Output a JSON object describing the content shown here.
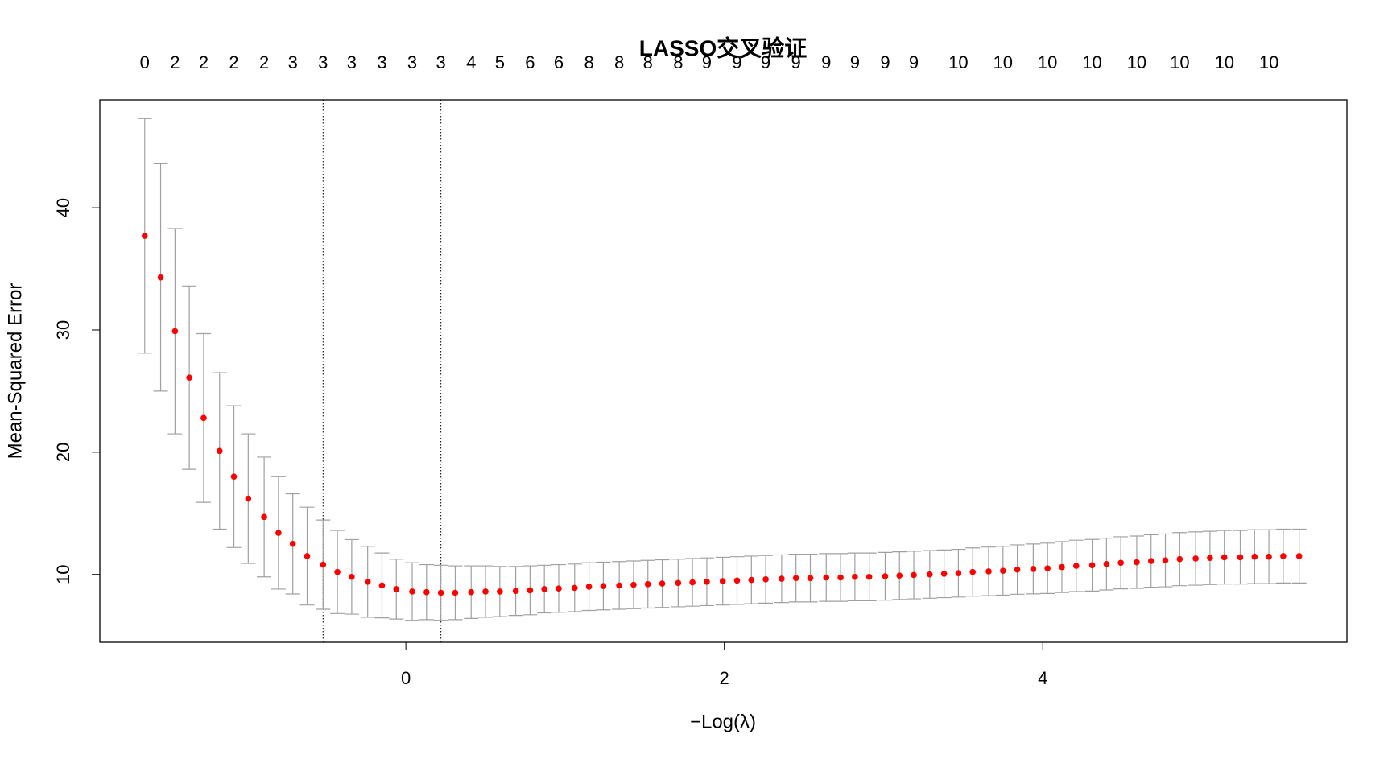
{
  "chart_data": {
    "type": "errorbar",
    "title": "LASSO交叉验证",
    "x_label": "−Log(λ)",
    "y_label": "Mean-Squared Error",
    "x": [
      -1.64,
      -1.54,
      -1.45,
      -1.36,
      -1.27,
      -1.17,
      -1.08,
      -0.99,
      -0.89,
      -0.8,
      -0.71,
      -0.62,
      -0.52,
      -0.43,
      -0.34,
      -0.24,
      -0.15,
      -0.06,
      0.04,
      0.13,
      0.22,
      0.31,
      0.41,
      0.5,
      0.59,
      0.69,
      0.78,
      0.87,
      0.96,
      1.06,
      1.15,
      1.24,
      1.34,
      1.43,
      1.52,
      1.61,
      1.71,
      1.8,
      1.89,
      1.99,
      2.08,
      2.17,
      2.26,
      2.36,
      2.45,
      2.54,
      2.64,
      2.73,
      2.82,
      2.91,
      3.01,
      3.1,
      3.19,
      3.29,
      3.38,
      3.47,
      3.56,
      3.66,
      3.75,
      3.84,
      3.94,
      4.03,
      4.12,
      4.21,
      4.31,
      4.4,
      4.49,
      4.59,
      4.68,
      4.77,
      4.86,
      4.96,
      5.05,
      5.14,
      5.24,
      5.33,
      5.42,
      5.51,
      5.61
    ],
    "values": [
      37.7,
      34.3,
      29.9,
      26.1,
      22.8,
      20.1,
      18.0,
      16.2,
      14.7,
      13.4,
      12.5,
      11.5,
      10.8,
      10.2,
      9.8,
      9.4,
      9.1,
      8.8,
      8.6,
      8.55,
      8.5,
      8.5,
      8.55,
      8.6,
      8.6,
      8.65,
      8.7,
      8.8,
      8.85,
      8.9,
      9.0,
      9.05,
      9.1,
      9.15,
      9.2,
      9.25,
      9.3,
      9.35,
      9.4,
      9.45,
      9.5,
      9.55,
      9.6,
      9.65,
      9.7,
      9.7,
      9.75,
      9.75,
      9.8,
      9.8,
      9.85,
      9.9,
      9.95,
      10.0,
      10.05,
      10.1,
      10.2,
      10.25,
      10.3,
      10.4,
      10.45,
      10.5,
      10.6,
      10.7,
      10.75,
      10.85,
      10.95,
      11.0,
      11.1,
      11.15,
      11.25,
      11.3,
      11.35,
      11.4,
      11.4,
      11.45,
      11.45,
      11.5,
      11.5
    ],
    "errors": [
      9.6,
      9.3,
      8.4,
      7.5,
      6.9,
      6.4,
      5.8,
      5.3,
      4.9,
      4.6,
      4.1,
      4.0,
      3.65,
      3.4,
      3.05,
      2.9,
      2.65,
      2.45,
      2.35,
      2.25,
      2.25,
      2.2,
      2.15,
      2.1,
      2.05,
      2.0,
      2.0,
      1.95,
      1.95,
      1.95,
      1.95,
      1.95,
      1.95,
      1.95,
      1.95,
      1.95,
      1.95,
      1.95,
      1.95,
      1.95,
      1.95,
      1.95,
      1.95,
      1.95,
      1.95,
      1.95,
      1.95,
      1.95,
      1.95,
      1.95,
      1.95,
      1.95,
      1.95,
      1.95,
      1.95,
      1.95,
      1.97,
      1.99,
      2.0,
      2.02,
      2.04,
      2.06,
      2.08,
      2.1,
      2.11,
      2.12,
      2.13,
      2.14,
      2.15,
      2.16,
      2.17,
      2.18,
      2.18,
      2.19,
      2.19,
      2.2,
      2.2,
      2.2,
      2.2
    ],
    "color": "#ff0000",
    "error_color": "#a0a0a0",
    "vlines": [
      -0.52,
      0.22
    ],
    "xlim": [
      -1.922,
      5.91
    ],
    "ylim": [
      4.45,
      48.83
    ],
    "xticks": [
      0,
      2,
      4
    ],
    "yticks": [
      10,
      20,
      30,
      40
    ],
    "top_ticks": [
      {
        "value": -1.64,
        "label": "0"
      },
      {
        "value": -1.45,
        "label": "2"
      },
      {
        "value": -1.27,
        "label": "2"
      },
      {
        "value": -1.08,
        "label": "2"
      },
      {
        "value": -0.89,
        "label": "2"
      },
      {
        "value": -0.71,
        "label": "3"
      },
      {
        "value": -0.52,
        "label": "3"
      },
      {
        "value": -0.34,
        "label": "3"
      },
      {
        "value": -0.15,
        "label": "3"
      },
      {
        "value": 0.04,
        "label": "3"
      },
      {
        "value": 0.22,
        "label": "3"
      },
      {
        "value": 0.41,
        "label": "4"
      },
      {
        "value": 0.59,
        "label": "5"
      },
      {
        "value": 0.78,
        "label": "6"
      },
      {
        "value": 0.96,
        "label": "6"
      },
      {
        "value": 1.15,
        "label": "8"
      },
      {
        "value": 1.34,
        "label": "8"
      },
      {
        "value": 1.52,
        "label": "8"
      },
      {
        "value": 1.71,
        "label": "8"
      },
      {
        "value": 1.89,
        "label": "9"
      },
      {
        "value": 2.08,
        "label": "9"
      },
      {
        "value": 2.26,
        "label": "9"
      },
      {
        "value": 2.45,
        "label": "9"
      },
      {
        "value": 2.64,
        "label": "9"
      },
      {
        "value": 2.82,
        "label": "9"
      },
      {
        "value": 3.01,
        "label": "9"
      },
      {
        "value": 3.19,
        "label": "9"
      },
      {
        "value": 3.47,
        "label": "10"
      },
      {
        "value": 3.75,
        "label": "10"
      },
      {
        "value": 4.03,
        "label": "10"
      },
      {
        "value": 4.31,
        "label": "10"
      },
      {
        "value": 4.59,
        "label": "10"
      },
      {
        "value": 4.86,
        "label": "10"
      },
      {
        "value": 5.14,
        "label": "10"
      },
      {
        "value": 5.42,
        "label": "10"
      }
    ]
  }
}
